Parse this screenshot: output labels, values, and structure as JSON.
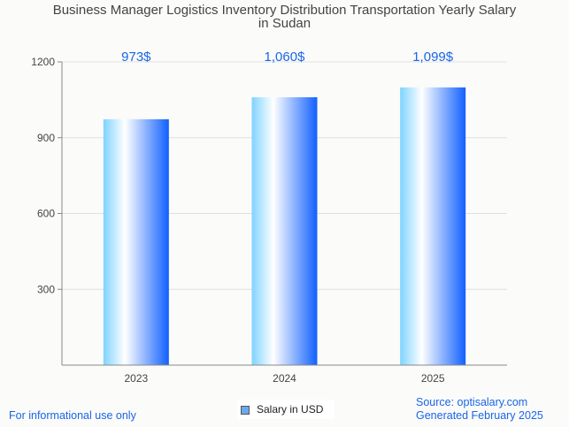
{
  "chart_data": {
    "type": "bar",
    "title_line1": "Business Manager Logistics Inventory Distribution Transportation Yearly Salary",
    "title_line2": "in Sudan",
    "categories": [
      "2023",
      "2024",
      "2025"
    ],
    "values": [
      973,
      1060,
      1099
    ],
    "data_labels": [
      "973$",
      "1,060$",
      "1,099$"
    ],
    "yticks": [
      300,
      600,
      900,
      1200
    ],
    "ylim": [
      0,
      1200
    ],
    "grid": true,
    "legend": {
      "label": "Salary in USD",
      "position": "bottom"
    },
    "colors": {
      "bar_left": "#7fd3ff",
      "bar_mid": "#ffffff",
      "bar_right": "#1060ff",
      "label": "#1a66e6"
    }
  },
  "footer": {
    "left": "For informational use only",
    "source": "Source: optisalary.com",
    "generated": "Generated February 2025"
  }
}
